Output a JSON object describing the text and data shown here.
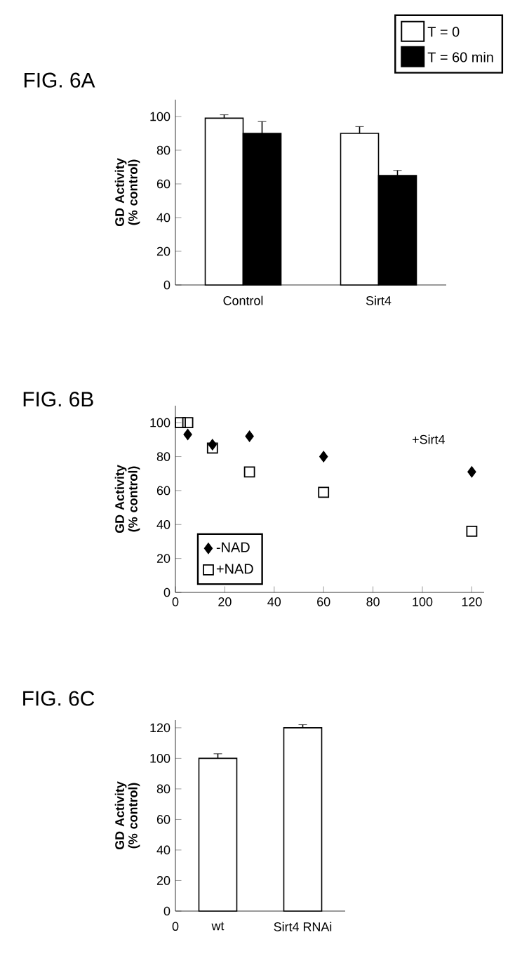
{
  "chart_data": [
    {
      "type": "bar",
      "title": "FIG. 6A",
      "ylabel": "GD Activity (% control)",
      "categories": [
        "Control",
        "Sirt4"
      ],
      "ylim": [
        0,
        110
      ],
      "yticks": [
        0,
        20,
        40,
        60,
        80,
        100
      ],
      "legend": "top right",
      "series": [
        {
          "name": "T = 0",
          "color": "#ffffff",
          "values": [
            99,
            90
          ],
          "errors": [
            2,
            4
          ]
        },
        {
          "name": "T = 60 min",
          "color": "#000000",
          "values": [
            90,
            65
          ],
          "errors": [
            7,
            3
          ]
        }
      ]
    },
    {
      "type": "scatter",
      "title": "FIG. 6B",
      "ylabel": "GD Activity (% control)",
      "xlim": [
        0,
        125
      ],
      "xticks": [
        0,
        20,
        40,
        60,
        80,
        100,
        120
      ],
      "ylim": [
        0,
        110
      ],
      "yticks": [
        0,
        20,
        40,
        60,
        80,
        100
      ],
      "legend": "bottom left",
      "annotations": [
        "+Sirt4"
      ],
      "series": [
        {
          "name": "-NAD",
          "color": "#000000",
          "marker": "diamond",
          "x": [
            5,
            15,
            30,
            60,
            120
          ],
          "values": [
            93,
            87,
            92,
            80,
            71
          ]
        },
        {
          "name": "+NAD",
          "color": "#000000",
          "marker": "square",
          "x": [
            2,
            5,
            15,
            30,
            60,
            120
          ],
          "values": [
            100,
            100,
            85,
            71,
            59,
            36
          ]
        }
      ]
    },
    {
      "type": "bar",
      "title": "FIG. 6C",
      "ylabel": "GD Activity (% control)",
      "categories": [
        "wt",
        "Sirt4 RNAi"
      ],
      "ylim": [
        0,
        125
      ],
      "yticks": [
        0,
        20,
        40,
        60,
        80,
        100,
        120
      ],
      "annotations": [
        "0"
      ],
      "series": [
        {
          "color": "#ffffff",
          "values": [
            100,
            120
          ],
          "errors": [
            3,
            2
          ]
        }
      ]
    }
  ]
}
